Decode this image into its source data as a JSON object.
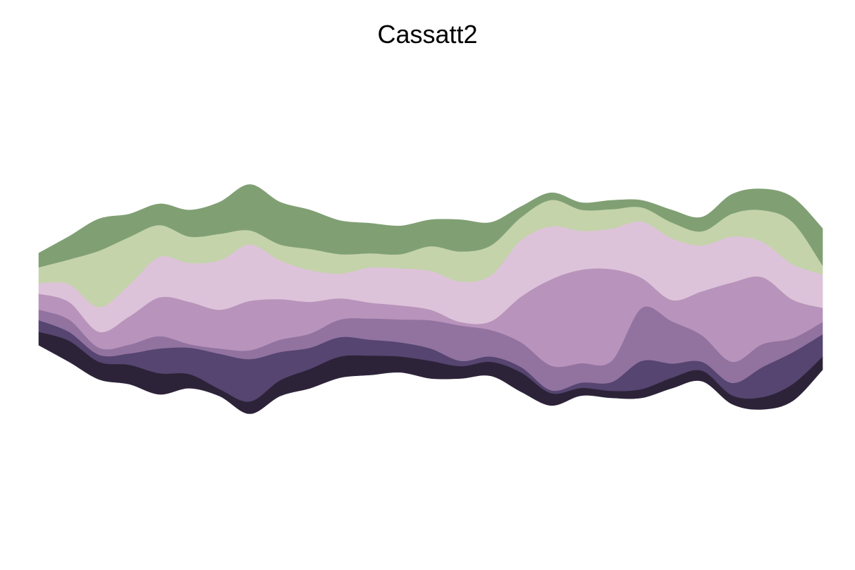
{
  "chart_data": {
    "type": "area",
    "subtype": "streamgraph",
    "title": "Cassatt2",
    "xlabel": "",
    "ylabel": "",
    "axes_visible": false,
    "grid": false,
    "legend": "none",
    "x": [
      0,
      1,
      2,
      3,
      4,
      5,
      6,
      7,
      8,
      9,
      10,
      11,
      12,
      13,
      14,
      15,
      16,
      17,
      18,
      19,
      20,
      21,
      22,
      23,
      24,
      25,
      26
    ],
    "series": [
      {
        "color": "#2d2339",
        "values": [
          38,
          60,
          50,
          55,
          60,
          40,
          20,
          35,
          45,
          55,
          60,
          55,
          45,
          50,
          35,
          40,
          55,
          35,
          22,
          20,
          25,
          30,
          30,
          25,
          35,
          48,
          38
        ]
      },
      {
        "color": "#554570",
        "values": [
          33,
          25,
          20,
          32,
          70,
          75,
          100,
          120,
          80,
          60,
          55,
          45,
          40,
          35,
          15,
          15,
          15,
          8,
          15,
          25,
          80,
          40,
          25,
          35,
          85,
          90,
          63
        ]
      },
      {
        "color": "#9273a0",
        "values": [
          30,
          35,
          20,
          25,
          35,
          10,
          15,
          25,
          35,
          40,
          50,
          60,
          65,
          80,
          100,
          75,
          70,
          70,
          55,
          60,
          150,
          120,
          75,
          60,
          65,
          40,
          35
        ]
      },
      {
        "color": "#b893bb",
        "values": [
          45,
          50,
          45,
          80,
          110,
          120,
          110,
          140,
          115,
          90,
          60,
          45,
          40,
          30,
          10,
          25,
          130,
          245,
          265,
          260,
          85,
          60,
          125,
          225,
          190,
          110,
          40
        ]
      },
      {
        "color": "#ddc3d9",
        "values": [
          30,
          50,
          70,
          90,
          115,
          110,
          140,
          160,
          110,
          90,
          70,
          100,
          105,
          110,
          115,
          130,
          160,
          150,
          110,
          115,
          160,
          175,
          130,
          130,
          100,
          100,
          95
        ]
      },
      {
        "color": "#c4d3aa",
        "values": [
          45,
          70,
          160,
          135,
          90,
          75,
          75,
          40,
          45,
          60,
          55,
          40,
          40,
          70,
          85,
          85,
          65,
          75,
          60,
          55,
          40,
          45,
          40,
          65,
          90,
          120,
          25
        ]
      },
      {
        "color": "#80a074",
        "values": [
          40,
          65,
          90,
          65,
          60,
          75,
          90,
          130,
          120,
          110,
          95,
          85,
          80,
          75,
          90,
          65,
          30,
          20,
          20,
          25,
          20,
          35,
          40,
          55,
          60,
          70,
          105
        ]
      }
    ]
  }
}
